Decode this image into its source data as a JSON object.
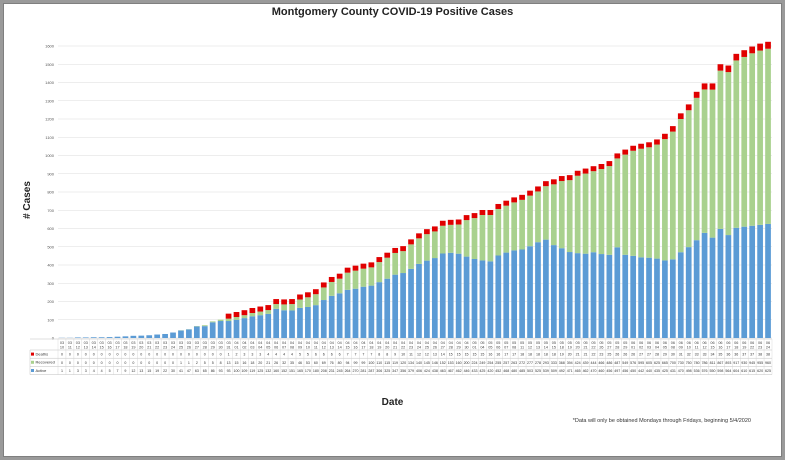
{
  "page": {
    "footnote": "*Data will only be obtained Mondays through Fridays, beginning 5/4/2020"
  },
  "chart_data": {
    "type": "bar",
    "stacked": true,
    "title": "Montgomery County COVID-19 Positive Cases",
    "xlabel": "Date",
    "ylabel": "# Cases",
    "ylim": [
      0,
      1600
    ],
    "yticks": [
      0,
      100,
      200,
      300,
      400,
      500,
      600,
      700,
      800,
      900,
      1000,
      1100,
      1200,
      1300,
      1400,
      1500,
      1600
    ],
    "grid": true,
    "legend": "table-left",
    "categories": [
      "03/10",
      "03/11",
      "03/12",
      "03/13",
      "03/14",
      "03/15",
      "03/16",
      "03/17",
      "03/18",
      "03/19",
      "03/20",
      "03/21",
      "03/22",
      "03/23",
      "03/24",
      "03/25",
      "03/26",
      "03/27",
      "03/28",
      "03/29",
      "03/30",
      "03/31",
      "04/01",
      "04/02",
      "04/03",
      "04/04",
      "04/05",
      "04/06",
      "04/07",
      "04/08",
      "04/09",
      "04/10",
      "04/11",
      "04/12",
      "04/13",
      "04/14",
      "04/15",
      "04/16",
      "04/17",
      "04/18",
      "04/19",
      "04/20",
      "04/21",
      "04/22",
      "04/23",
      "04/24",
      "04/25",
      "04/26",
      "04/27",
      "04/28",
      "04/29",
      "04/30",
      "05/01",
      "05/04",
      "05/05",
      "05/06",
      "05/07",
      "05/08",
      "05/11",
      "05/12",
      "05/13",
      "05/14",
      "05/15",
      "05/18",
      "05/19",
      "05/20",
      "05/21",
      "05/22",
      "05/26",
      "05/27",
      "05/28",
      "05/29",
      "06/01",
      "06/02",
      "06/03",
      "06/04",
      "06/05",
      "06/08",
      "06/09",
      "06/10",
      "06/11",
      "06/12",
      "06/15",
      "06/16",
      "06/17",
      "06/18",
      "06/19",
      "06/22",
      "06/23",
      "06/24"
    ],
    "series": [
      {
        "name": "Active",
        "color": "#5b9bd5",
        "values": [
          1,
          1,
          3,
          3,
          4,
          4,
          5,
          7,
          9,
          12,
          13,
          15,
          19,
          22,
          30,
          41,
          47,
          63,
          65,
          86,
          93,
          93,
          100,
          109,
          119,
          125,
          132,
          160,
          152,
          151,
          165,
          170,
          180,
          208,
          231,
          245,
          264,
          270,
          281,
          287,
          306,
          325,
          347,
          356,
          379,
          406,
          424,
          438,
          463,
          467,
          462,
          446,
          433,
          425,
          420,
          452,
          468,
          480,
          485,
          503,
          525,
          539,
          509,
          492,
          471,
          465,
          462,
          470,
          460,
          456,
          497,
          456,
          450,
          442,
          440,
          435,
          425,
          431,
          470,
          498,
          536,
          576,
          550,
          598,
          564,
          604,
          610,
          615,
          620,
          625
        ]
      },
      {
        "name": "Recovered",
        "color": "#a9d18e",
        "values": [
          0,
          0,
          0,
          0,
          0,
          0,
          0,
          0,
          0,
          0,
          0,
          0,
          0,
          0,
          0,
          1,
          1,
          2,
          5,
          5,
          8,
          13,
          15,
          16,
          18,
          20,
          21,
          26,
          32,
          35,
          46,
          53,
          60,
          69,
          76,
          80,
          94,
          99,
          99,
          100,
          110,
          115,
          119,
          120,
          134,
          140,
          145,
          146,
          152,
          153,
          160,
          200,
          224,
          249,
          254,
          255,
          257,
          263,
          272,
          277,
          278,
          293,
          333,
          368,
          394,
          424,
          439,
          444,
          466,
          486,
          487,
          549,
          576,
          595,
          605,
          625,
          665,
          700,
          730,
          750,
          780,
          786,
          811,
          867,
          893,
          917,
          930,
          945,
          955,
          960
        ]
      },
      {
        "name": "Deaths",
        "color": "#e00000",
        "values": [
          0,
          0,
          0,
          0,
          0,
          0,
          0,
          0,
          0,
          0,
          0,
          0,
          0,
          0,
          0,
          0,
          0,
          0,
          0,
          0,
          0,
          1,
          2,
          3,
          3,
          3,
          4,
          4,
          4,
          4,
          5,
          5,
          6,
          6,
          6,
          6,
          7,
          7,
          7,
          7,
          8,
          8,
          9,
          10,
          11,
          12,
          12,
          13,
          14,
          15,
          15,
          15,
          15,
          15,
          16,
          16,
          17,
          17,
          18,
          18,
          18,
          18,
          18,
          19,
          20,
          21,
          21,
          22,
          23,
          25,
          26,
          26,
          26,
          27,
          27,
          28,
          29,
          30,
          31,
          32,
          33,
          33,
          34,
          35,
          36,
          36,
          37,
          37,
          38,
          38
        ]
      }
    ]
  }
}
